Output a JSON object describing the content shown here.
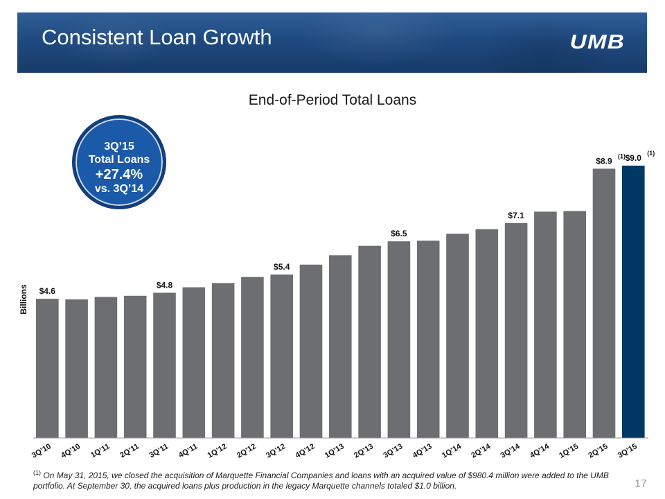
{
  "header": {
    "title": "Consistent Loan Growth",
    "logo_text": "UMB"
  },
  "callout": {
    "line1": "3Q’15",
    "line2": "Total Loans",
    "line3": "+27.4%",
    "line4": "vs. 3Q’14"
  },
  "footnote": {
    "marker": "(1)",
    "text": "On May 31, 2015, we closed the acquisition of Marquette Financial Companies and loans with an acquired value of $980.4 million were added to the UMB portfolio. At September 30, the acquired loans plus production in the legacy Marquette channels totaled $1.0 billion."
  },
  "page_number": "17",
  "colors": {
    "banner": "#1f4a80",
    "bar": "#6d6e71",
    "highlight_bar": "#003865",
    "callout": "#1b5aa8"
  },
  "chart_data": {
    "type": "bar",
    "title": "End-of-Period Total Loans",
    "ylabel": "Billions",
    "xlabel": "",
    "ylim": [
      0,
      10
    ],
    "grid": false,
    "categories": [
      "3Q’10",
      "4Q’10",
      "1Q’11",
      "2Q’11",
      "3Q’11",
      "4Q’11",
      "1Q’12",
      "2Q’12",
      "3Q’12",
      "4Q’12",
      "1Q’13",
      "2Q’13",
      "3Q’13",
      "4Q’13",
      "1Q’14",
      "2Q’14",
      "3Q’14",
      "4Q’14",
      "1Q’15",
      "2Q’15",
      "3Q’15"
    ],
    "values": [
      4.6,
      4.58,
      4.66,
      4.7,
      4.8,
      4.98,
      5.12,
      5.32,
      5.4,
      5.73,
      6.04,
      6.35,
      6.5,
      6.52,
      6.75,
      6.9,
      7.1,
      7.48,
      7.5,
      8.9,
      9.0
    ],
    "data_labels": [
      {
        "index": 0,
        "text": "$4.6"
      },
      {
        "index": 4,
        "text": "$4.8"
      },
      {
        "index": 8,
        "text": "$5.4"
      },
      {
        "index": 12,
        "text": "$6.5"
      },
      {
        "index": 16,
        "text": "$7.1"
      },
      {
        "index": 19,
        "text": "$8.9",
        "note": "(1)"
      },
      {
        "index": 20,
        "text": "$9.0",
        "note": "(1)"
      }
    ],
    "highlight_index": 20
  }
}
